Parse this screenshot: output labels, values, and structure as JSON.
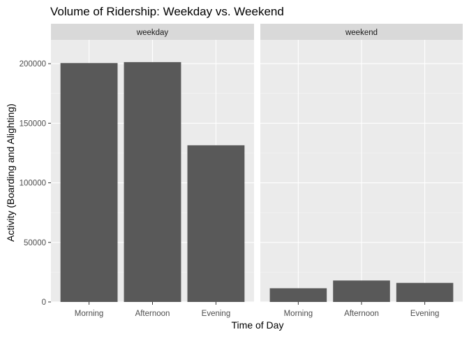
{
  "chart_data": {
    "type": "bar",
    "title": "Volume of Ridership: Weekday vs. Weekend",
    "xlabel": "Time of Day",
    "ylabel": "Activity (Boarding and Alighting)",
    "ylim": [
      0,
      220000
    ],
    "y_ticks": [
      0,
      50000,
      100000,
      150000,
      200000
    ],
    "y_tick_labels": [
      "0",
      "50000",
      "100000",
      "150000",
      "200000"
    ],
    "categories": [
      "Morning",
      "Afternoon",
      "Evening"
    ],
    "facets": [
      {
        "label": "weekday",
        "values": [
          200500,
          201300,
          131500
        ]
      },
      {
        "label": "weekend",
        "values": [
          11500,
          18000,
          16000
        ]
      }
    ],
    "grid": true,
    "legend": "none",
    "colors": {
      "bar": "#595959",
      "panel_bg": "#ebebeb",
      "strip_bg": "#d9d9d9",
      "grid_major": "#ffffff",
      "text": "#000000",
      "tick_text": "#4d4d4d"
    }
  }
}
